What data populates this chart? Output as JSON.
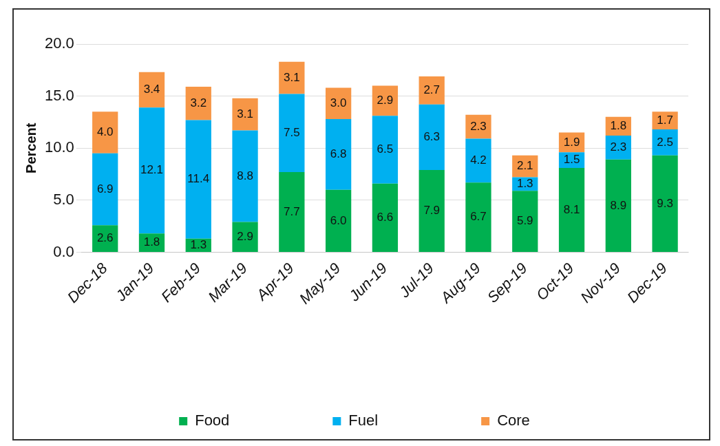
{
  "chart_data": {
    "type": "bar",
    "stacked": true,
    "ylabel": "Percent",
    "categories": [
      "Dec-18",
      "Jan-19",
      "Feb-19",
      "Mar-19",
      "Apr-19",
      "May-19",
      "Jun-19",
      "Jul-19",
      "Aug-19",
      "Sep-19",
      "Oct-19",
      "Nov-19",
      "Dec-19"
    ],
    "series": [
      {
        "name": "Food",
        "color": "#00b050",
        "values": [
          2.6,
          1.8,
          1.3,
          2.9,
          7.7,
          6.0,
          6.6,
          7.9,
          6.7,
          5.9,
          8.1,
          8.9,
          9.3
        ],
        "value_labels": [
          "2.6",
          "1.8",
          "1.3",
          "2.9",
          "7.7",
          "6.0",
          "6.6",
          "7.9",
          "6.7",
          "5.9",
          "8.1",
          "8.9",
          "9.3"
        ]
      },
      {
        "name": "Fuel",
        "color": "#00b0f0",
        "values": [
          6.9,
          12.1,
          11.4,
          8.8,
          7.5,
          6.8,
          6.5,
          6.3,
          4.2,
          1.3,
          1.5,
          2.3,
          2.5
        ],
        "value_labels": [
          "6.9",
          "12.1",
          "11.4",
          "8.8",
          "7.5",
          "6.8",
          "6.5",
          "6.3",
          "4.2",
          "1.3",
          "1.5",
          "2.3",
          "2.5"
        ]
      },
      {
        "name": "Core",
        "color": "#f79646",
        "values": [
          4.0,
          3.4,
          3.2,
          3.1,
          3.1,
          3.0,
          2.9,
          2.7,
          2.3,
          2.1,
          1.9,
          1.8,
          1.7
        ],
        "value_labels": [
          "4.0",
          "3.4",
          "3.2",
          "3.1",
          "3.1",
          "3.0",
          "2.9",
          "2.7",
          "2.3",
          "2.1",
          "1.9",
          "1.8",
          "1.7"
        ]
      }
    ],
    "ylim": [
      0,
      20
    ],
    "yticks": [
      {
        "value": 0,
        "label": "0.0"
      },
      {
        "value": 5,
        "label": "5.0"
      },
      {
        "value": 10,
        "label": "10.0"
      },
      {
        "value": 15,
        "label": "15.0"
      },
      {
        "value": 20,
        "label": "20.0"
      }
    ],
    "grid": "y",
    "legend": "bottom"
  }
}
